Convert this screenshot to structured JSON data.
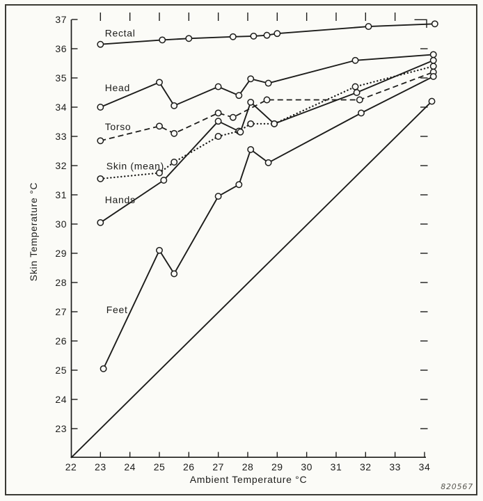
{
  "figure": {
    "number": "820567"
  },
  "chart_data": {
    "type": "line",
    "xlabel": "Ambient Temperature °C",
    "ylabel": "Skin Temperature °C",
    "xlim": [
      22,
      34.6
    ],
    "ylim": [
      22,
      37
    ],
    "x_ticks": [
      22,
      23,
      24,
      25,
      26,
      27,
      28,
      29,
      30,
      31,
      32,
      33,
      34
    ],
    "y_ticks": [
      23,
      24,
      25,
      26,
      27,
      28,
      29,
      30,
      31,
      32,
      33,
      34,
      35,
      36,
      37
    ],
    "grid": false,
    "legend_position": "inline-labels",
    "series": [
      {
        "name": "Rectal",
        "label": "Rectal",
        "line": "solid",
        "markers": "all",
        "label_at": [
          23.15,
          36.42
        ],
        "points": [
          [
            23.0,
            36.15
          ],
          [
            25.1,
            36.3
          ],
          [
            26.0,
            36.35
          ],
          [
            27.5,
            36.41
          ],
          [
            28.2,
            36.43
          ],
          [
            28.65,
            36.46
          ],
          [
            29.0,
            36.52
          ],
          [
            32.1,
            36.76
          ],
          [
            34.35,
            36.85
          ]
        ]
      },
      {
        "name": "Head",
        "label": "Head",
        "line": "solid",
        "markers": "all",
        "label_at": [
          23.15,
          34.55
        ],
        "points": [
          [
            23.0,
            34.0
          ],
          [
            25.0,
            34.85
          ],
          [
            25.5,
            34.05
          ],
          [
            27.0,
            34.7
          ],
          [
            27.7,
            34.4
          ],
          [
            28.1,
            34.97
          ],
          [
            28.7,
            34.82
          ],
          [
            31.65,
            35.6
          ],
          [
            34.3,
            35.8
          ]
        ]
      },
      {
        "name": "Torso",
        "label": "Torso",
        "line": "dashed",
        "markers": "all",
        "label_at": [
          23.15,
          33.22
        ],
        "points": [
          [
            23.0,
            32.85
          ],
          [
            25.0,
            33.35
          ],
          [
            25.5,
            33.1
          ],
          [
            27.0,
            33.8
          ],
          [
            27.5,
            33.65
          ],
          [
            28.65,
            34.25
          ],
          [
            31.8,
            34.25
          ],
          [
            34.3,
            35.2
          ]
        ]
      },
      {
        "name": "Skin (mean)",
        "label": "Skin (mean)",
        "line": "dotted",
        "markers": "all",
        "label_at": [
          23.2,
          31.87
        ],
        "points": [
          [
            23.0,
            31.55
          ],
          [
            25.0,
            31.75
          ],
          [
            25.5,
            32.12
          ],
          [
            27.0,
            33.0
          ],
          [
            27.7,
            33.18
          ],
          [
            28.1,
            33.43
          ],
          [
            28.9,
            33.43
          ],
          [
            31.65,
            34.7
          ],
          [
            34.3,
            35.4
          ]
        ]
      },
      {
        "name": "Hands",
        "label": "Hands",
        "line": "solid",
        "markers": "all",
        "label_at": [
          23.15,
          30.71
        ],
        "points": [
          [
            23.0,
            30.05
          ],
          [
            25.15,
            31.5
          ],
          [
            27.0,
            33.52
          ],
          [
            27.75,
            33.15
          ],
          [
            28.1,
            34.17
          ],
          [
            28.9,
            33.43
          ],
          [
            31.7,
            34.5
          ],
          [
            34.3,
            35.6
          ]
        ]
      },
      {
        "name": "Feet",
        "label": "Feet",
        "line": "solid",
        "markers": "all",
        "label_at": [
          23.2,
          26.95
        ],
        "points": [
          [
            23.1,
            25.05
          ],
          [
            25.0,
            29.1
          ],
          [
            25.5,
            28.3
          ],
          [
            27.0,
            30.95
          ],
          [
            27.7,
            31.35
          ],
          [
            28.1,
            32.55
          ],
          [
            28.7,
            32.1
          ],
          [
            31.85,
            33.8
          ],
          [
            34.3,
            35.05
          ]
        ]
      },
      {
        "name": "ambient-reference-line",
        "label": null,
        "line": "solid",
        "markers": "last",
        "label_at": null,
        "points": [
          [
            22.0,
            22.0
          ],
          [
            34.25,
            34.2
          ]
        ]
      }
    ]
  }
}
